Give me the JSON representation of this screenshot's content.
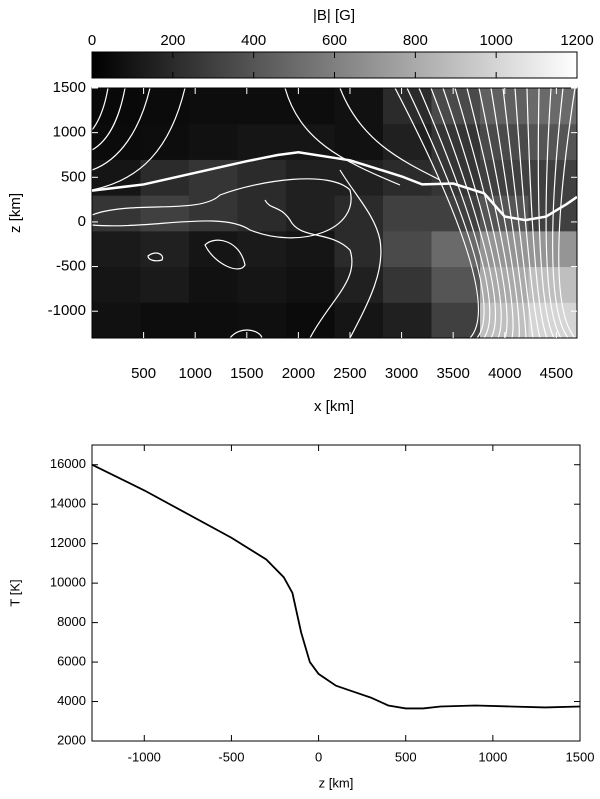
{
  "chart_data": [
    {
      "type": "heatmap",
      "colorbar_label": "|B| [G]",
      "clim": [
        0,
        1200
      ],
      "cticks": [
        0,
        200,
        400,
        600,
        800,
        1000,
        1200
      ],
      "xlabel": "x [km]",
      "ylabel": "z [km]",
      "xlim": [
        0,
        4700
      ],
      "ylim": [
        -1300,
        1500
      ],
      "xticks": [
        500,
        1000,
        1500,
        2000,
        2500,
        3000,
        3500,
        4000,
        4500
      ],
      "yticks": [
        -1000,
        -500,
        0,
        500,
        1000,
        1500
      ],
      "xbins": [
        0,
        470,
        940,
        1410,
        1880,
        2350,
        2820,
        3290,
        3760,
        4230,
        4700
      ],
      "ybins": [
        -1300,
        -900,
        -500,
        -100,
        300,
        700,
        1100,
        1500
      ],
      "values": [
        [
          80,
          60,
          60,
          70,
          50,
          100,
          150,
          300,
          900,
          1000
        ],
        [
          100,
          120,
          80,
          100,
          80,
          150,
          250,
          400,
          800,
          900
        ],
        [
          120,
          150,
          100,
          120,
          100,
          200,
          350,
          500,
          700,
          700
        ],
        [
          250,
          300,
          250,
          200,
          150,
          200,
          300,
          300,
          400,
          300
        ],
        [
          100,
          200,
          250,
          200,
          150,
          150,
          200,
          250,
          300,
          300
        ],
        [
          50,
          60,
          80,
          100,
          100,
          80,
          150,
          250,
          350,
          400
        ],
        [
          40,
          50,
          60,
          60,
          60,
          80,
          200,
          350,
          450,
          500
        ]
      ],
      "series": [
        {
          "color": "#ffffff",
          "x": [
            0,
            500,
            1000,
            1500,
            1800,
            2000,
            2500,
            3000,
            3200,
            3500,
            3800,
            4000,
            4200,
            4400,
            4600,
            4700
          ],
          "values": [
            350,
            420,
            550,
            680,
            750,
            780,
            690,
            510,
            420,
            430,
            320,
            60,
            20,
            60,
            200,
            280
          ]
        }
      ]
    },
    {
      "type": "line",
      "xlabel": "z [km]",
      "ylabel": "T [K]",
      "color": "#000000",
      "xlim": [
        -1300,
        1500
      ],
      "ylim": [
        2000,
        17000
      ],
      "xticks": [
        -1000,
        -500,
        0,
        500,
        1000,
        1500
      ],
      "yticks": [
        2000,
        4000,
        6000,
        8000,
        10000,
        12000,
        14000,
        16000
      ],
      "x": [
        -1300,
        -1000,
        -500,
        -300,
        -200,
        -150,
        -100,
        -50,
        0,
        100,
        200,
        300,
        400,
        500,
        600,
        700,
        900,
        1100,
        1300,
        1500
      ],
      "values": [
        16000,
        14700,
        12300,
        11200,
        10300,
        9500,
        7500,
        6000,
        5400,
        4800,
        4500,
        4200,
        3800,
        3650,
        3650,
        3750,
        3800,
        3750,
        3700,
        3750
      ]
    }
  ]
}
